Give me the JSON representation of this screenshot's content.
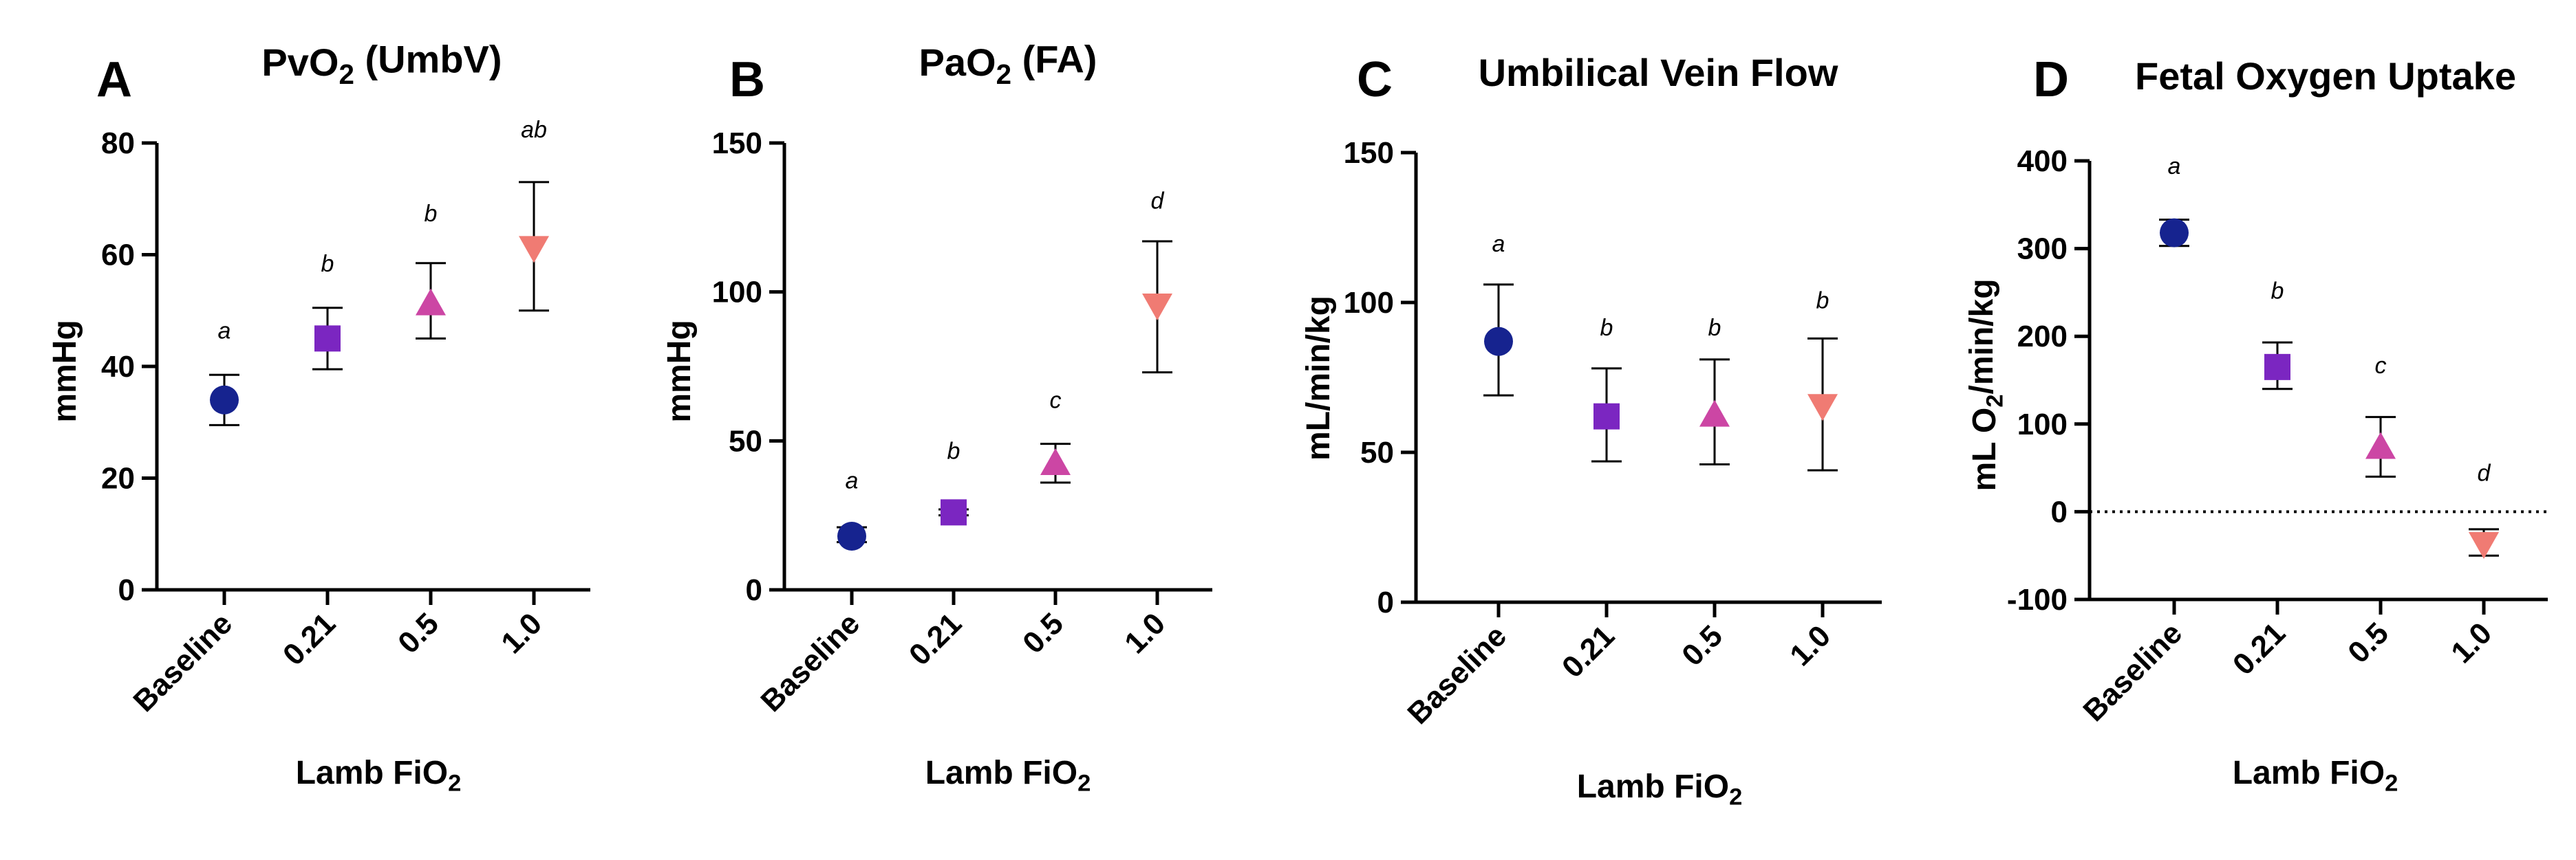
{
  "colors": {
    "Baseline": "#16238f",
    "0.21": "#7b26c1",
    "0.5": "#cc46a4",
    "1.0": "#f07b73"
  },
  "chart_data": [
    {
      "type": "scatter",
      "panel": "A",
      "title": "PvO",
      "title_sub": "2",
      "title_tail": " (UmbV)",
      "ylabel": "mmHg",
      "ylabel_sub": "",
      "ylabel_tail": "",
      "xlabel": "Lamb FiO",
      "xlabel_sub": "2",
      "categories": [
        "Baseline",
        "0.21",
        "0.5",
        "1.0"
      ],
      "markers": [
        "circle",
        "square",
        "triangle-up",
        "triangle-down"
      ],
      "ylim": [
        0,
        80
      ],
      "yticks": [
        0,
        20,
        40,
        60,
        80
      ],
      "ytick_labels": [
        "0",
        "20",
        "40",
        "60",
        "80"
      ],
      "values": [
        34,
        45,
        51,
        61.5
      ],
      "err_low": [
        29.5,
        39.5,
        45,
        50
      ],
      "err_high": [
        38.5,
        50.5,
        58.5,
        73
      ],
      "letters": [
        "a",
        "b",
        "b",
        "ab"
      ],
      "letter_y": [
        45,
        57,
        66,
        81
      ],
      "zero_line": false
    },
    {
      "type": "scatter",
      "panel": "B",
      "title": "PaO",
      "title_sub": "2",
      "title_tail": " (FA)",
      "ylabel": "mmHg",
      "ylabel_sub": "",
      "ylabel_tail": "",
      "xlabel": "Lamb FiO",
      "xlabel_sub": "2",
      "categories": [
        "Baseline",
        "0.21",
        "0.5",
        "1.0"
      ],
      "markers": [
        "circle",
        "square",
        "triangle-up",
        "triangle-down"
      ],
      "ylim": [
        0,
        150
      ],
      "yticks": [
        0,
        50,
        100,
        150
      ],
      "ytick_labels": [
        "0",
        "50",
        "100",
        "150"
      ],
      "values": [
        18,
        26,
        42,
        96
      ],
      "err_low": [
        16,
        25,
        36,
        73
      ],
      "err_high": [
        21,
        27,
        49,
        117
      ],
      "letters": [
        "a",
        "b",
        "c",
        "d"
      ],
      "letter_y": [
        34,
        44,
        61,
        128
      ],
      "zero_line": false
    },
    {
      "type": "scatter",
      "panel": "C",
      "title": "Umbilical Vein Flow",
      "title_sub": "",
      "title_tail": "",
      "ylabel": "mL/min/kg",
      "ylabel_sub": "",
      "ylabel_tail": "",
      "xlabel": "Lamb FiO",
      "xlabel_sub": "2",
      "categories": [
        "Baseline",
        "0.21",
        "0.5",
        "1.0"
      ],
      "markers": [
        "circle",
        "square",
        "triangle-up",
        "triangle-down"
      ],
      "ylim": [
        0,
        150
      ],
      "yticks": [
        0,
        50,
        100,
        150
      ],
      "ytick_labels": [
        "0",
        "50",
        "100",
        "150"
      ],
      "values": [
        87,
        62,
        62,
        66
      ],
      "err_low": [
        69,
        47,
        46,
        44
      ],
      "err_high": [
        106,
        78,
        81,
        88
      ],
      "letters": [
        "a",
        "b",
        "b",
        "b"
      ],
      "letter_y": [
        117,
        89,
        89,
        98
      ],
      "zero_line": false
    },
    {
      "type": "scatter",
      "panel": "D",
      "title": "Fetal Oxygen Uptake",
      "title_sub": "",
      "title_tail": "",
      "ylabel": "mL O",
      "ylabel_sub": "2",
      "ylabel_tail": "/min/kg",
      "xlabel": "Lamb FiO",
      "xlabel_sub": "2",
      "categories": [
        "Baseline",
        "0.21",
        "0.5",
        "1.0"
      ],
      "markers": [
        "circle",
        "square",
        "triangle-up",
        "triangle-down"
      ],
      "ylim": [
        -100,
        400
      ],
      "yticks": [
        -100,
        0,
        100,
        200,
        300,
        400
      ],
      "ytick_labels": [
        "-100",
        "0",
        "100",
        "200",
        "300",
        "400"
      ],
      "values": [
        318,
        165,
        72,
        -35
      ],
      "err_low": [
        303,
        140,
        40,
        -50
      ],
      "err_high": [
        333,
        193,
        108,
        -20
      ],
      "letters": [
        "a",
        "b",
        "c",
        "d"
      ],
      "letter_y": [
        385,
        243,
        158,
        35
      ],
      "zero_line": true
    }
  ]
}
